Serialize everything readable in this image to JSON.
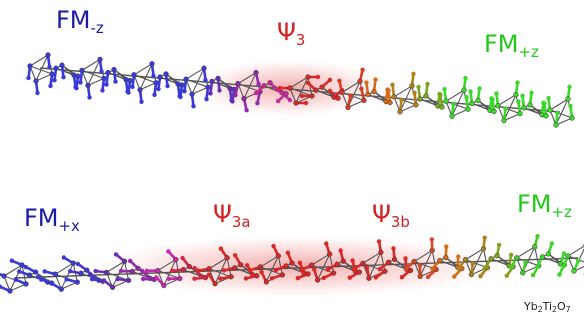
{
  "labels": {
    "fm_minus_z": {
      "main": "FM",
      "sub": "-z",
      "color": "#1a1aa6"
    },
    "psi3": {
      "main": "Ψ",
      "sub": "3",
      "color": "#d42020"
    },
    "fm_plus_z_top": {
      "main": "FM",
      "sub": "+z",
      "color": "#22c91a"
    },
    "fm_plus_x": {
      "main": "FM",
      "sub": "+x",
      "color": "#1a1aa6"
    },
    "psi3a": {
      "main": "Ψ",
      "sub": "3a",
      "color": "#d42020"
    },
    "psi3b": {
      "main": "Ψ",
      "sub": "3b",
      "color": "#d42020"
    },
    "fm_plus_z_bottom": {
      "main": "FM",
      "sub": "+z",
      "color": "#22c91a"
    }
  },
  "formula": {
    "p1": "Yb",
    "s1": "2",
    "p2": "Ti",
    "s2": "2",
    "p3": "O",
    "s3": "7"
  },
  "colors": {
    "blue": "#3a3ad8",
    "purple": "#7a2aa8",
    "magenta": "#c02ab0",
    "red": "#d82828",
    "orange": "#d86a1a",
    "olive": "#a08a1a",
    "green": "#3ad828",
    "lattice": "#555555",
    "glow": "#f4a0a0"
  }
}
